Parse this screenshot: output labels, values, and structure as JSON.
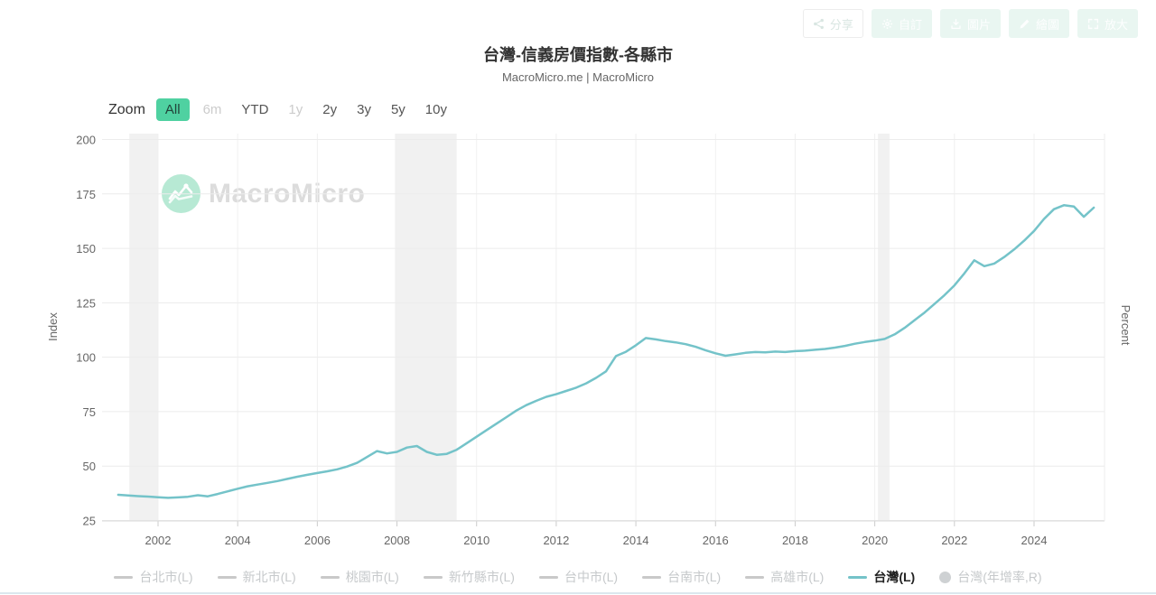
{
  "header": {
    "title": "台灣-信義房價指數-各縣市",
    "subtitle": "MacroMicro.me | MacroMicro",
    "buttons": [
      {
        "label": "分享",
        "icon": "share-icon",
        "style": "light"
      },
      {
        "label": "自訂",
        "icon": "gear-icon",
        "style": "teal"
      },
      {
        "label": "圖片",
        "icon": "download-icon",
        "style": "teal"
      },
      {
        "label": "繪圖",
        "icon": "pencil-icon",
        "style": "teal"
      },
      {
        "label": "放大",
        "icon": "expand-icon",
        "style": "teal"
      }
    ]
  },
  "range_selector": {
    "label": "Zoom",
    "options": [
      {
        "label": "All",
        "state": "selected"
      },
      {
        "label": "6m",
        "state": "disabled"
      },
      {
        "label": "YTD",
        "state": "normal"
      },
      {
        "label": "1y",
        "state": "disabled"
      },
      {
        "label": "2y",
        "state": "normal"
      },
      {
        "label": "3y",
        "state": "normal"
      },
      {
        "label": "5y",
        "state": "normal"
      },
      {
        "label": "10y",
        "state": "normal"
      }
    ]
  },
  "watermark": {
    "text": "MacroMicro"
  },
  "colors": {
    "accent_green": "#4fd1a1",
    "line_teal": "#74c3c9",
    "band_gray": "#eeeeee",
    "logo_mint": "#b7e9d4"
  },
  "chart_data": {
    "type": "line",
    "title": "台灣-信義房價指數-各縣市",
    "ylabel_left": "Index",
    "ylabel_right": "Percent",
    "ylim_left": [
      25,
      200
    ],
    "yticks_left": [
      200,
      175,
      150,
      125,
      100,
      75,
      50,
      25
    ],
    "xticks": [
      2002,
      2004,
      2006,
      2008,
      2010,
      2012,
      2014,
      2016,
      2018,
      2020,
      2022,
      2024
    ],
    "xlim": [
      2000.6,
      2025.8
    ],
    "grid": true,
    "legend_position": "bottom",
    "recession_bands": [
      [
        2001.28,
        2002.0
      ],
      [
        2007.95,
        2009.5
      ],
      [
        2020.08,
        2020.37
      ]
    ],
    "series": [
      {
        "name": "台灣(L)",
        "color": "#74c3c9",
        "x_start": 2001.0,
        "x_step": 0.25,
        "values": [
          36.8,
          36.5,
          36.2,
          36.0,
          35.7,
          35.4,
          35.6,
          35.9,
          36.6,
          36.1,
          37.2,
          38.4,
          39.6,
          40.7,
          41.5,
          42.3,
          43.1,
          44.1,
          45.1,
          46.0,
          46.8,
          47.6,
          48.5,
          49.8,
          51.5,
          54.2,
          56.9,
          55.8,
          56.5,
          58.5,
          59.2,
          56.5,
          55.2,
          55.6,
          57.5,
          60.5,
          63.5,
          66.5,
          69.5,
          72.5,
          75.5,
          78.0,
          80.0,
          81.8,
          83.0,
          84.5,
          86.0,
          88.0,
          90.5,
          93.5,
          100.5,
          102.5,
          105.5,
          108.8,
          108.2,
          107.4,
          106.8,
          106.0,
          104.8,
          103.2,
          101.8,
          100.7,
          101.3,
          102.0,
          102.4,
          102.2,
          102.6,
          102.4,
          102.8,
          103.0,
          103.4,
          103.8,
          104.4,
          105.2,
          106.2,
          107.0,
          107.6,
          108.4,
          110.5,
          113.5,
          117.0,
          120.5,
          124.5,
          128.5,
          133.0,
          138.5,
          144.5,
          141.8,
          143.0,
          146.0,
          149.5,
          153.5,
          158.0,
          163.5,
          168.0,
          169.8,
          169.2,
          164.5,
          168.7
        ]
      }
    ],
    "legend": [
      {
        "label": "台北市(L)",
        "marker": "line",
        "active": false
      },
      {
        "label": "新北市(L)",
        "marker": "line",
        "active": false
      },
      {
        "label": "桃園市(L)",
        "marker": "line",
        "active": false
      },
      {
        "label": "新竹縣市(L)",
        "marker": "line",
        "active": false
      },
      {
        "label": "台中市(L)",
        "marker": "line",
        "active": false
      },
      {
        "label": "台南市(L)",
        "marker": "line",
        "active": false
      },
      {
        "label": "高雄市(L)",
        "marker": "line",
        "active": false
      },
      {
        "label": "台灣(L)",
        "marker": "line",
        "active": true,
        "color": "#74c3c9"
      },
      {
        "label": "台灣(年增率,R)",
        "marker": "circle",
        "active": false
      }
    ]
  }
}
